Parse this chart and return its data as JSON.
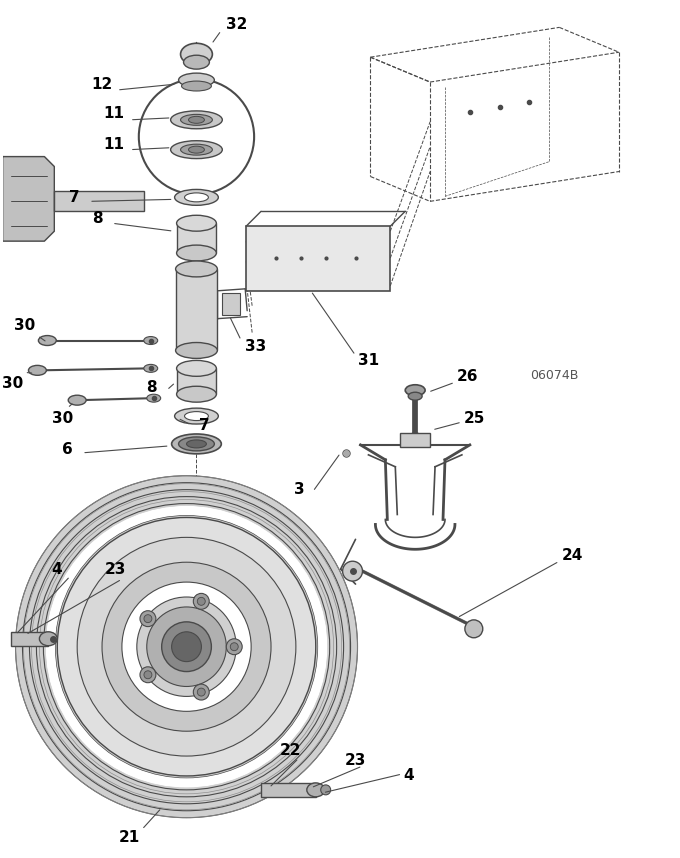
{
  "bg_color": "#ffffff",
  "line_color": "#4a4a4a",
  "label_color": "#000000",
  "fig_width": 6.8,
  "fig_height": 8.58,
  "dpi": 100,
  "watermark": "06074B"
}
